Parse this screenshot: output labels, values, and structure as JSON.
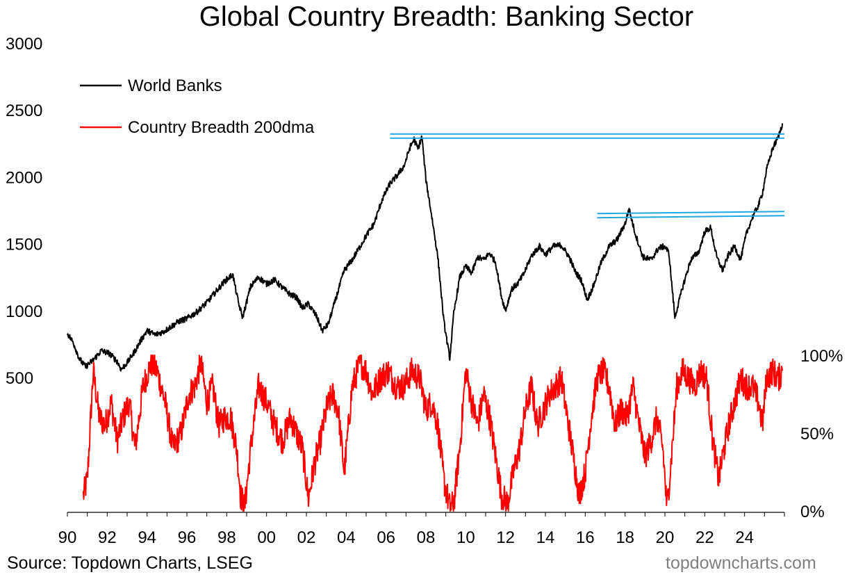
{
  "title": "Global Country Breadth: Banking Sector",
  "source": "Source: Topdown Charts, LSEG",
  "watermark": "topdowncharts.com",
  "colors": {
    "world_banks": "#000000",
    "breadth": "#ff0000",
    "resistance": "#1ea7e1"
  },
  "chart_data": {
    "type": "line",
    "title": "Global Country Breadth: Banking Sector",
    "x_range": [
      1990.0,
      2026.0
    ],
    "x_tick_labels": [
      "90",
      "92",
      "94",
      "96",
      "98",
      "00",
      "02",
      "04",
      "06",
      "08",
      "10",
      "12",
      "14",
      "16",
      "18",
      "20",
      "22",
      "24"
    ],
    "left_axis": {
      "range": [
        0,
        3000
      ],
      "tick_labels": [
        "3000",
        "2500",
        "2000",
        "1500",
        "1000",
        "500"
      ],
      "tick_values": [
        3000,
        2500,
        2000,
        1500,
        1000,
        500
      ]
    },
    "right_axis": {
      "range": [
        0,
        100
      ],
      "tick_labels": [
        "100%",
        "50%",
        "0%"
      ],
      "tick_values": [
        100,
        50,
        0
      ]
    },
    "legend": {
      "placement": "top-left"
    },
    "grid": false,
    "series": [
      {
        "name": "World Banks",
        "axis": "left",
        "color": "#000000",
        "x": [
          1990.0,
          1990.3,
          1990.6,
          1990.9,
          1991.3,
          1991.7,
          1992.1,
          1992.5,
          1992.7,
          1993.0,
          1993.4,
          1993.7,
          1994.0,
          1994.4,
          1994.8,
          1995.2,
          1995.6,
          1996.0,
          1996.5,
          1997.0,
          1997.5,
          1997.9,
          1998.3,
          1998.6,
          1998.8,
          1999.2,
          1999.6,
          2000.0,
          2000.4,
          2000.8,
          2001.2,
          2001.5,
          2001.8,
          2002.1,
          2002.5,
          2002.8,
          2003.1,
          2003.5,
          2003.9,
          2004.3,
          2004.7,
          2005.0,
          2005.4,
          2005.8,
          2006.2,
          2006.5,
          2006.9,
          2007.2,
          2007.4,
          2007.6,
          2007.8,
          2008.0,
          2008.3,
          2008.6,
          2008.9,
          2009.2,
          2009.4,
          2009.7,
          2010.0,
          2010.3,
          2010.6,
          2010.9,
          2011.2,
          2011.5,
          2011.8,
          2012.0,
          2012.3,
          2012.6,
          2012.9,
          2013.3,
          2013.7,
          2014.0,
          2014.4,
          2014.8,
          2015.2,
          2015.5,
          2015.8,
          2016.1,
          2016.4,
          2016.8,
          2017.2,
          2017.6,
          2018.0,
          2018.2,
          2018.5,
          2018.9,
          2019.3,
          2019.7,
          2020.0,
          2020.2,
          2020.5,
          2020.9,
          2021.3,
          2021.7,
          2022.0,
          2022.3,
          2022.6,
          2022.9,
          2023.2,
          2023.5,
          2023.8,
          2024.1,
          2024.4,
          2024.7,
          2024.9,
          2025.1,
          2025.4,
          2025.7,
          2025.9
        ],
        "y": [
          830,
          760,
          640,
          580,
          630,
          700,
          680,
          620,
          560,
          610,
          700,
          780,
          850,
          820,
          840,
          880,
          920,
          940,
          990,
          1060,
          1150,
          1220,
          1270,
          1050,
          950,
          1180,
          1250,
          1200,
          1230,
          1170,
          1120,
          1100,
          1020,
          1050,
          960,
          850,
          900,
          1100,
          1300,
          1380,
          1480,
          1560,
          1650,
          1830,
          1950,
          2000,
          2080,
          2220,
          2280,
          2210,
          2300,
          1980,
          1700,
          1400,
          920,
          640,
          980,
          1250,
          1330,
          1280,
          1400,
          1380,
          1430,
          1360,
          1100,
          1000,
          1160,
          1200,
          1270,
          1410,
          1480,
          1420,
          1480,
          1490,
          1400,
          1290,
          1230,
          1080,
          1180,
          1360,
          1480,
          1530,
          1650,
          1760,
          1580,
          1400,
          1380,
          1470,
          1480,
          1430,
          950,
          1180,
          1380,
          1440,
          1590,
          1620,
          1400,
          1300,
          1420,
          1480,
          1380,
          1580,
          1700,
          1790,
          1880,
          2050,
          2210,
          2300,
          2400
        ]
      },
      {
        "name": "Country Breadth 200dma",
        "axis": "right",
        "color": "#ff0000",
        "x": [
          1990.8,
          1991.0,
          1991.3,
          1991.6,
          1991.9,
          1992.2,
          1992.5,
          1992.8,
          1993.1,
          1993.4,
          1993.8,
          1994.2,
          1994.5,
          1994.9,
          1995.3,
          1995.7,
          1996.1,
          1996.4,
          1996.7,
          1997.0,
          1997.3,
          1997.6,
          1997.9,
          1998.2,
          1998.5,
          1998.7,
          1998.9,
          1999.2,
          1999.6,
          2000.0,
          2000.4,
          2000.8,
          2001.2,
          2001.5,
          2001.8,
          2002.1,
          2002.4,
          2002.7,
          2003.0,
          2003.3,
          2003.6,
          2003.9,
          2004.3,
          2004.7,
          2005.0,
          2005.3,
          2005.7,
          2006.1,
          2006.5,
          2006.9,
          2007.3,
          2007.7,
          2008.0,
          2008.3,
          2008.6,
          2008.9,
          2009.2,
          2009.4,
          2009.7,
          2010.0,
          2010.3,
          2010.6,
          2010.9,
          2011.2,
          2011.5,
          2011.8,
          2012.1,
          2012.4,
          2012.7,
          2013.0,
          2013.3,
          2013.6,
          2013.9,
          2014.2,
          2014.5,
          2014.8,
          2015.1,
          2015.4,
          2015.7,
          2016.0,
          2016.3,
          2016.6,
          2016.9,
          2017.2,
          2017.5,
          2017.8,
          2018.1,
          2018.4,
          2018.7,
          2019.0,
          2019.3,
          2019.6,
          2019.9,
          2020.1,
          2020.3,
          2020.6,
          2020.9,
          2021.2,
          2021.5,
          2021.8,
          2022.1,
          2022.4,
          2022.7,
          2022.9,
          2023.2,
          2023.5,
          2023.8,
          2024.1,
          2024.4,
          2024.7,
          2024.9,
          2025.1,
          2025.4,
          2025.7,
          2025.9
        ],
        "y": [
          10,
          20,
          90,
          60,
          55,
          70,
          45,
          60,
          70,
          40,
          80,
          95,
          90,
          70,
          40,
          50,
          75,
          80,
          95,
          70,
          80,
          55,
          60,
          60,
          40,
          10,
          2,
          40,
          80,
          70,
          55,
          45,
          60,
          50,
          40,
          8,
          30,
          45,
          65,
          75,
          65,
          25,
          80,
          95,
          90,
          75,
          85,
          90,
          80,
          80,
          90,
          85,
          65,
          70,
          55,
          20,
          2,
          5,
          40,
          90,
          70,
          55,
          75,
          60,
          35,
          10,
          5,
          25,
          40,
          65,
          80,
          55,
          65,
          75,
          80,
          85,
          60,
          35,
          10,
          25,
          60,
          85,
          90,
          80,
          55,
          65,
          60,
          80,
          55,
          35,
          45,
          60,
          40,
          2,
          30,
          80,
          90,
          85,
          80,
          90,
          85,
          45,
          20,
          35,
          55,
          70,
          85,
          80,
          80,
          70,
          55,
          85,
          90,
          85,
          90
        ]
      }
    ],
    "annotations": [
      {
        "type": "horizontal-line",
        "axis": "left",
        "y": 2305,
        "x_start": 2006.2,
        "x_end": 2026.0
      },
      {
        "type": "trend-line",
        "axis": "left",
        "x_start": 2016.6,
        "x_end": 2026.0,
        "y_start": 1710,
        "y_end": 1725
      }
    ]
  }
}
